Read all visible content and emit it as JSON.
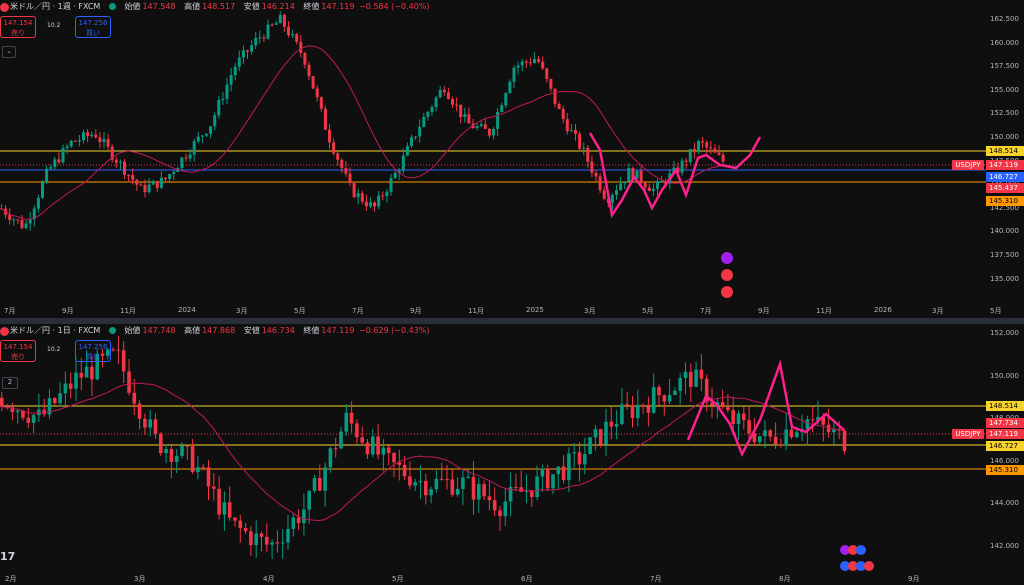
{
  "colors": {
    "up": "#089981",
    "down": "#f23645",
    "ma": "#c2185b",
    "pink": "#ff1f8f",
    "yellow": "#f5d32b",
    "orange": "#ff9800",
    "blue": "#2962ff"
  },
  "top": {
    "title": "米ドル／円 · 1週 · FXCM",
    "open_label": "始値",
    "open": "147.548",
    "high_label": "高値",
    "high": "148.517",
    "low_label": "安値",
    "low": "146.214",
    "close_label": "終値",
    "close": "147.119",
    "change": "−0.584 (−0.40%)",
    "sell_price": "147.154",
    "sell_label": "売り",
    "buy_price": "147.256",
    "buy_label": "買い",
    "spread": "10.2",
    "y_ticks": [
      "162.500",
      "160.000",
      "157.500",
      "155.000",
      "152.500",
      "150.000",
      "147.500",
      "145.000",
      "142.500",
      "140.000",
      "137.500",
      "135.000"
    ],
    "x_ticks": [
      "7月",
      "9月",
      "11月",
      "2024",
      "3月",
      "5月",
      "7月",
      "9月",
      "11月",
      "2025",
      "3月",
      "5月",
      "7月",
      "9月",
      "11月",
      "2026",
      "3月",
      "5月"
    ],
    "symbol_tag": "USDJPY",
    "tags": [
      {
        "v": "148.514"
      },
      {
        "v": "147.119"
      },
      {
        "v": "146.727"
      },
      {
        "v": "145.437"
      },
      {
        "v": "145.310"
      }
    ]
  },
  "bottom": {
    "title": "米ドル／円 · 1日 · FXCM",
    "open_label": "始値",
    "open": "147.748",
    "high_label": "高値",
    "high": "147.868",
    "low_label": "安値",
    "low": "146.734",
    "close_label": "終値",
    "close": "147.119",
    "change": "−0.629 (−0.43%)",
    "sell_price": "147.154",
    "sell_label": "売り",
    "buy_price": "147.256",
    "buy_label": "買い",
    "spread": "10.2",
    "collapse_count": "2",
    "y_ticks": [
      "152.000",
      "150.000",
      "148.000",
      "146.000",
      "144.000",
      "142.000"
    ],
    "x_ticks": [
      "2月",
      "3月",
      "4月",
      "5月",
      "6月",
      "7月",
      "8月",
      "9月"
    ],
    "symbol_tag": "USDJPY",
    "tags": [
      {
        "v": "148.514"
      },
      {
        "v": "147.734"
      },
      {
        "v": "147.119"
      },
      {
        "v": "146.727"
      },
      {
        "v": "145.310"
      }
    ]
  },
  "logo_text": "17"
}
